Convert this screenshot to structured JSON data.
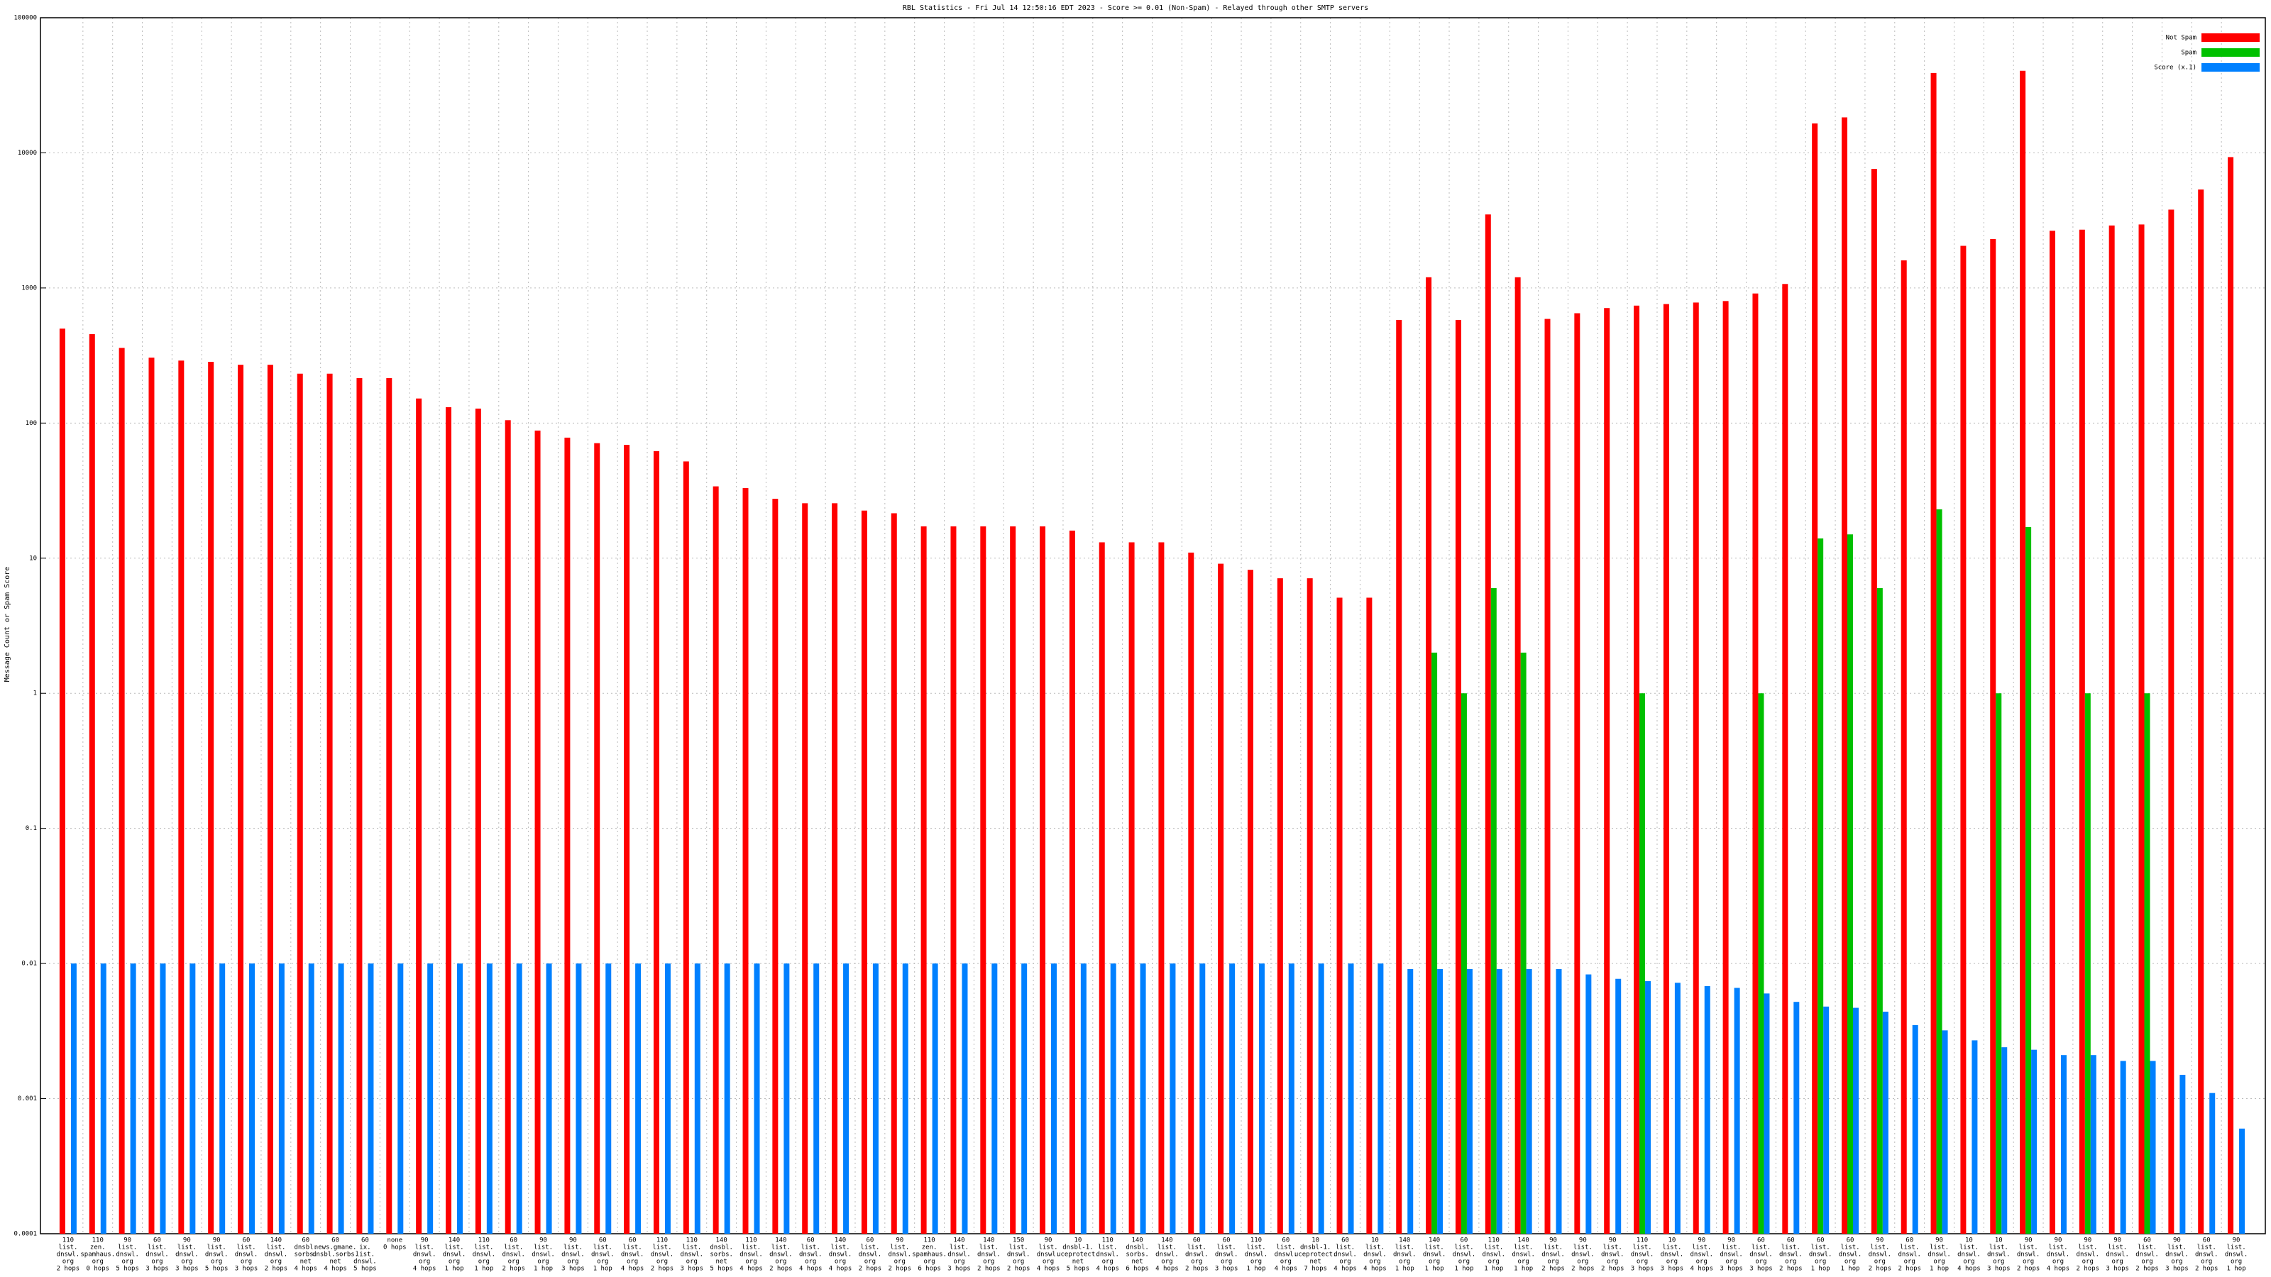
{
  "chart_data": {
    "type": "bar",
    "title": "RBL Statistics - Fri Jul 14 12:50:16 EDT 2023 - Score >= 0.01 (Non-Spam) - Relayed through other SMTP servers",
    "ylabel": "Message Count or Spam Score",
    "log_scale": true,
    "grid": true,
    "legend": "top-right",
    "ylim": [
      0.0001,
      100000
    ],
    "yticks": [
      0.0001,
      0.001,
      0.01,
      0.1,
      1,
      10,
      100,
      1000,
      10000,
      100000
    ],
    "categories": [
      [
        "110",
        "list.",
        "dnswl.",
        "org",
        "2 hops"
      ],
      [
        "110",
        "zen.",
        "spamhaus.",
        "org",
        "0 hops"
      ],
      [
        "90",
        "list.",
        "dnswl.",
        "org",
        "5 hops"
      ],
      [
        "60",
        "list.",
        "dnswl.",
        "org",
        "3 hops"
      ],
      [
        "90",
        "list.",
        "dnswl.",
        "org",
        "3 hops"
      ],
      [
        "90",
        "list.",
        "dnswl.",
        "org",
        "5 hops"
      ],
      [
        "60",
        "list.",
        "dnswl.",
        "org",
        "3 hops"
      ],
      [
        "140",
        "list.",
        "dnswl.",
        "org",
        "2 hops"
      ],
      [
        "60",
        "dnsbl.",
        "sorbs.",
        "net",
        "4 hops"
      ],
      [
        "60",
        "news.gmane.",
        "dnsbl.sorbs.",
        "net",
        "4 hops"
      ],
      [
        "60",
        "ix.",
        "list.",
        "dnswl.",
        "5 hops"
      ],
      [
        "none",
        "0 hops"
      ],
      [
        "90",
        "list.",
        "dnswl.",
        "org",
        "4 hops"
      ],
      [
        "140",
        "list.",
        "dnswl.",
        "org",
        "1 hop"
      ],
      [
        "110",
        "list.",
        "dnswl.",
        "org",
        "1 hop"
      ],
      [
        "60",
        "list.",
        "dnswl.",
        "org",
        "2 hops"
      ],
      [
        "90",
        "list.",
        "dnswl.",
        "org",
        "1 hop"
      ],
      [
        "90",
        "list.",
        "dnswl.",
        "org",
        "3 hops"
      ],
      [
        "60",
        "list.",
        "dnswl.",
        "org",
        "1 hop"
      ],
      [
        "60",
        "list.",
        "dnswl.",
        "org",
        "4 hops"
      ],
      [
        "110",
        "list.",
        "dnswl.",
        "org",
        "2 hops"
      ],
      [
        "110",
        "list.",
        "dnswl.",
        "org",
        "3 hops"
      ],
      [
        "140",
        "dnsbl.",
        "sorbs.",
        "net",
        "5 hops"
      ],
      [
        "110",
        "list.",
        "dnswl.",
        "org",
        "4 hops"
      ],
      [
        "140",
        "list.",
        "dnswl.",
        "org",
        "2 hops"
      ],
      [
        "60",
        "list.",
        "dnswl.",
        "org",
        "4 hops"
      ],
      [
        "140",
        "list.",
        "dnswl.",
        "org",
        "4 hops"
      ],
      [
        "60",
        "list.",
        "dnswl.",
        "org",
        "2 hops"
      ],
      [
        "90",
        "list.",
        "dnswl.",
        "org",
        "2 hops"
      ],
      [
        "110",
        "zen.",
        "spamhaus.",
        "org",
        "6 hops"
      ],
      [
        "140",
        "list.",
        "dnswl.",
        "org",
        "3 hops"
      ],
      [
        "140",
        "list.",
        "dnswl.",
        "org",
        "2 hops"
      ],
      [
        "150",
        "list.",
        "dnswl.",
        "org",
        "2 hops"
      ],
      [
        "90",
        "list.",
        "dnswl.",
        "org",
        "4 hops"
      ],
      [
        "10",
        "dnsbl-1.",
        "uceprotect.",
        "net",
        "5 hops"
      ],
      [
        "110",
        "list.",
        "dnswl.",
        "org",
        "4 hops"
      ],
      [
        "140",
        "dnsbl.",
        "sorbs.",
        "net",
        "6 hops"
      ],
      [
        "140",
        "list.",
        "dnswl.",
        "org",
        "4 hops"
      ],
      [
        "60",
        "list.",
        "dnswl.",
        "org",
        "2 hops"
      ],
      [
        "60",
        "list.",
        "dnswl.",
        "org",
        "3 hops"
      ],
      [
        "110",
        "list.",
        "dnswl.",
        "org",
        "1 hop"
      ],
      [
        "60",
        "list.",
        "dnswl.",
        "org",
        "4 hops"
      ],
      [
        "10",
        "dnsbl-1.",
        "uceprotect.",
        "net",
        "7 hops"
      ],
      [
        "60",
        "list.",
        "dnswl.",
        "org",
        "4 hops"
      ],
      [
        "10",
        "list.",
        "dnswl.",
        "org",
        "4 hops"
      ],
      [
        "140",
        "list.",
        "dnswl.",
        "org",
        "1 hop"
      ],
      [
        "140",
        "list.",
        "dnswl.",
        "org",
        "1 hop"
      ],
      [
        "60",
        "list.",
        "dnswl.",
        "org",
        "1 hop"
      ],
      [
        "110",
        "list.",
        "dnswl.",
        "org",
        "1 hop"
      ],
      [
        "140",
        "list.",
        "dnswl.",
        "org",
        "1 hop"
      ],
      [
        "90",
        "list.",
        "dnswl.",
        "org",
        "2 hops"
      ],
      [
        "90",
        "list.",
        "dnswl.",
        "org",
        "2 hops"
      ],
      [
        "90",
        "list.",
        "dnswl.",
        "org",
        "2 hops"
      ],
      [
        "110",
        "list.",
        "dnswl.",
        "org",
        "3 hops"
      ],
      [
        "10",
        "list.",
        "dnswl.",
        "org",
        "3 hops"
      ],
      [
        "90",
        "list.",
        "dnswl.",
        "org",
        "4 hops"
      ],
      [
        "90",
        "list.",
        "dnswl.",
        "org",
        "3 hops"
      ],
      [
        "60",
        "list.",
        "dnswl.",
        "org",
        "3 hops"
      ],
      [
        "60",
        "list.",
        "dnswl.",
        "org",
        "2 hops"
      ],
      [
        "60",
        "list.",
        "dnswl.",
        "org",
        "1 hop"
      ],
      [
        "60",
        "list.",
        "dnswl.",
        "org",
        "1 hop"
      ],
      [
        "90",
        "list.",
        "dnswl.",
        "org",
        "2 hops"
      ],
      [
        "60",
        "list.",
        "dnswl.",
        "org",
        "2 hops"
      ],
      [
        "90",
        "list.",
        "dnswl.",
        "org",
        "1 hop"
      ],
      [
        "10",
        "list.",
        "dnswl.",
        "org",
        "4 hops"
      ],
      [
        "10",
        "list.",
        "dnswl.",
        "org",
        "3 hops"
      ],
      [
        "90",
        "list.",
        "dnswl.",
        "org",
        "2 hops"
      ],
      [
        "90",
        "list.",
        "dnswl.",
        "org",
        "4 hops"
      ],
      [
        "90",
        "list.",
        "dnswl.",
        "org",
        "2 hops"
      ],
      [
        "90",
        "list.",
        "dnswl.",
        "org",
        "3 hops"
      ],
      [
        "60",
        "list.",
        "dnswl.",
        "org",
        "2 hops"
      ],
      [
        "90",
        "list.",
        "dnswl.",
        "org",
        "3 hops"
      ],
      [
        "60",
        "list.",
        "dnswl.",
        "org",
        "2 hops"
      ],
      [
        "90",
        "list.",
        "dnswl.",
        "org",
        "1 hop"
      ]
    ],
    "series": [
      {
        "name": "Not Spam",
        "color": "#ff0000",
        "values": [
          500,
          455,
          360,
          305,
          290,
          284,
          270,
          270,
          232,
          232,
          215,
          215,
          152,
          131,
          128,
          105,
          88,
          78,
          71,
          69,
          62,
          52,
          34,
          33,
          27.5,
          25.5,
          25.5,
          22.5,
          21.5,
          17.2,
          17.2,
          17.2,
          17.2,
          17.2,
          16,
          13.1,
          13.1,
          13.1,
          11,
          9.1,
          8.2,
          7.1,
          7.1,
          5.1,
          5.1,
          580,
          1200,
          580,
          3500,
          1200,
          590,
          650,
          710,
          740,
          760,
          780,
          800,
          910,
          1070,
          16500,
          18300,
          7600,
          1600,
          39000,
          2050,
          2300,
          40500,
          2650,
          2700,
          2900,
          2950,
          3800,
          5350,
          9300
        ]
      },
      {
        "name": "Spam",
        "color": "#00c000",
        "values": [
          null,
          null,
          null,
          null,
          null,
          null,
          null,
          null,
          null,
          null,
          null,
          null,
          null,
          null,
          null,
          null,
          null,
          null,
          null,
          null,
          null,
          null,
          null,
          null,
          null,
          null,
          null,
          null,
          null,
          null,
          null,
          null,
          null,
          null,
          null,
          null,
          null,
          null,
          null,
          null,
          null,
          null,
          null,
          null,
          null,
          null,
          2,
          1,
          6,
          2,
          null,
          null,
          null,
          1,
          null,
          null,
          null,
          1,
          null,
          14,
          15,
          6,
          null,
          23,
          null,
          1,
          17,
          null,
          1,
          null,
          1,
          null,
          null,
          null
        ]
      },
      {
        "name": "Score (x.1)",
        "color": "#0080ff",
        "values": [
          0.01,
          0.01,
          0.01,
          0.01,
          0.01,
          0.01,
          0.01,
          0.01,
          0.01,
          0.01,
          0.01,
          0.01,
          0.01,
          0.01,
          0.01,
          0.01,
          0.01,
          0.01,
          0.01,
          0.01,
          0.01,
          0.01,
          0.01,
          0.01,
          0.01,
          0.01,
          0.01,
          0.01,
          0.01,
          0.01,
          0.01,
          0.01,
          0.01,
          0.01,
          0.01,
          0.01,
          0.01,
          0.01,
          0.01,
          0.01,
          0.01,
          0.01,
          0.01,
          0.01,
          0.01,
          0.0091,
          0.0091,
          0.0091,
          0.0091,
          0.0091,
          0.0091,
          0.0083,
          0.0077,
          0.0074,
          0.0072,
          0.0068,
          0.0066,
          0.006,
          0.0052,
          0.0048,
          0.0047,
          0.0044,
          0.0035,
          0.0032,
          0.0027,
          0.0024,
          0.0023,
          0.0021,
          0.0021,
          0.0019,
          0.0019,
          0.0015,
          0.0011,
          0.0006
        ]
      }
    ]
  }
}
